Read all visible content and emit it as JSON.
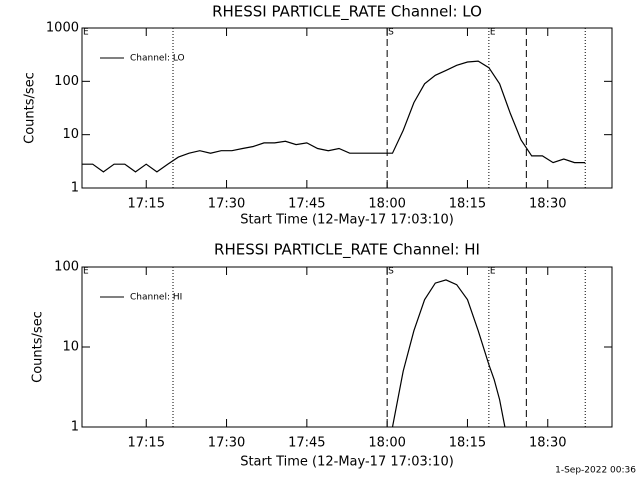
{
  "chart_data": [
    {
      "type": "line",
      "title": "RHESSI PARTICLE_RATE Channel: LO",
      "xlabel": "Start Time (12-May-17 17:03:10)",
      "ylabel": "Counts/sec",
      "log_y": true,
      "ylim": [
        1,
        1000
      ],
      "yticks": [
        1,
        10,
        100,
        1000
      ],
      "xlim": [
        "17:03",
        "18:42"
      ],
      "xticks": [
        "17:15",
        "17:30",
        "17:45",
        "18:00",
        "18:15",
        "18:30"
      ],
      "legend": "upper left",
      "markers": [
        {
          "x": "17:20",
          "style": "dotted"
        },
        {
          "x": "18:00",
          "style": "dashed"
        },
        {
          "x": "18:19",
          "style": "dotted"
        },
        {
          "x": "18:26",
          "style": "dashed"
        },
        {
          "x": "18:37",
          "style": "dotted"
        }
      ],
      "annotations": [
        {
          "text": "E",
          "x": "17:03"
        },
        {
          "text": "S",
          "x": "18:00"
        },
        {
          "text": "E",
          "x": "18:19"
        }
      ],
      "series": [
        {
          "name": "Channel: LO",
          "color": "#000000",
          "x": [
            "17:03",
            "17:05",
            "17:07",
            "17:09",
            "17:11",
            "17:13",
            "17:15",
            "17:17",
            "17:19",
            "17:21",
            "17:23",
            "17:25",
            "17:27",
            "17:29",
            "17:31",
            "17:33",
            "17:35",
            "17:37",
            "17:39",
            "17:41",
            "17:43",
            "17:45",
            "17:47",
            "17:49",
            "17:51",
            "17:53",
            "17:55",
            "17:57",
            "17:59",
            "18:01",
            "18:03",
            "18:05",
            "18:07",
            "18:09",
            "18:11",
            "18:13",
            "18:15",
            "18:17",
            "18:19",
            "18:21",
            "18:23",
            "18:25",
            "18:27",
            "18:29",
            "18:31",
            "18:33",
            "18:35",
            "18:37"
          ],
          "values": [
            2.8,
            2.8,
            2.0,
            2.8,
            2.8,
            2.0,
            2.8,
            2.0,
            2.8,
            3.8,
            4.5,
            5,
            4.5,
            5,
            5,
            5.5,
            6,
            7,
            7,
            7.5,
            6.5,
            7,
            5.5,
            5,
            5.5,
            4.5,
            4.5,
            4.5,
            4.5,
            4.5,
            12,
            40,
            90,
            130,
            160,
            200,
            230,
            240,
            180,
            90,
            25,
            8,
            4,
            4,
            3,
            3.5,
            3,
            3
          ]
        }
      ]
    },
    {
      "type": "line",
      "title": "RHESSI PARTICLE_RATE Channel: HI",
      "xlabel": "Start Time (12-May-17 17:03:10)",
      "ylabel": "Counts/sec",
      "log_y": true,
      "ylim": [
        1,
        100
      ],
      "yticks": [
        1,
        10,
        100
      ],
      "xlim": [
        "17:03",
        "18:42"
      ],
      "xticks": [
        "17:15",
        "17:30",
        "17:45",
        "18:00",
        "18:15",
        "18:30"
      ],
      "legend": "upper left",
      "markers": [
        {
          "x": "17:20",
          "style": "dotted"
        },
        {
          "x": "18:00",
          "style": "dashed"
        },
        {
          "x": "18:19",
          "style": "dotted"
        },
        {
          "x": "18:26",
          "style": "dashed"
        },
        {
          "x": "18:37",
          "style": "dotted"
        }
      ],
      "annotations": [
        {
          "text": "E",
          "x": "17:03"
        },
        {
          "text": "S",
          "x": "18:00"
        },
        {
          "text": "E",
          "x": "18:19"
        }
      ],
      "series": [
        {
          "name": "Channel: HI",
          "color": "#000000",
          "x": [
            "18:01",
            "18:03",
            "18:05",
            "18:07",
            "18:09",
            "18:11",
            "18:13",
            "18:15",
            "18:17",
            "18:19",
            "18:20",
            "18:21",
            "18:22"
          ],
          "values": [
            1,
            5,
            16,
            39,
            63,
            69,
            60,
            39,
            16,
            6,
            3.9,
            2.2,
            1
          ]
        }
      ]
    }
  ],
  "footer": "1-Sep-2022 00:36"
}
